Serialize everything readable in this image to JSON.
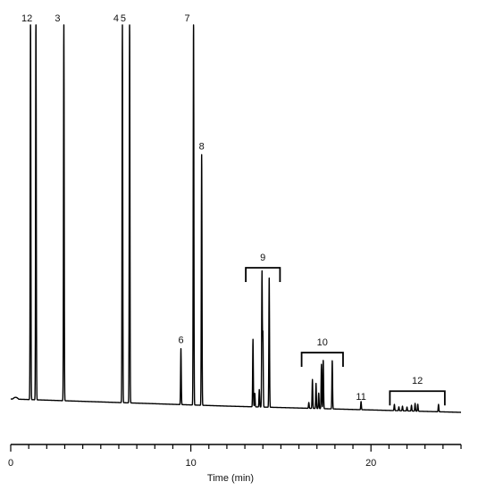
{
  "chart_data": {
    "type": "line",
    "title": "",
    "xlabel": "Time (min)",
    "ylabel": "",
    "xlim": [
      0,
      25
    ],
    "ylim": [
      0,
      100
    ],
    "x_ticks": [
      0,
      10,
      20
    ],
    "x_tick_labels": [
      "0",
      "10",
      "20"
    ],
    "minor_tick_step": 1,
    "grid": false,
    "line_color": "#000000",
    "peaks": [
      {
        "label": "1",
        "time": 1.1,
        "height": 100
      },
      {
        "label": "2",
        "time": 1.4,
        "height": 100
      },
      {
        "label": "3",
        "time": 2.95,
        "height": 100
      },
      {
        "label": "4",
        "time": 6.2,
        "height": 100
      },
      {
        "label": "5",
        "time": 6.6,
        "height": 100
      },
      {
        "label": "6",
        "time": 9.45,
        "height": 14.5
      },
      {
        "label": "7",
        "time": 10.15,
        "height": 100
      },
      {
        "label": "8",
        "time": 10.6,
        "height": 65
      }
    ],
    "minor_peaks": [
      {
        "time": 13.45,
        "height": 17.5
      },
      {
        "time": 13.55,
        "height": 3.5
      },
      {
        "time": 13.8,
        "height": 4.5
      },
      {
        "time": 13.95,
        "height": 35
      },
      {
        "time": 14.0,
        "height": 19
      },
      {
        "time": 14.35,
        "height": 33.5
      },
      {
        "time": 16.55,
        "height": 1.5
      },
      {
        "time": 16.75,
        "height": 7.5
      },
      {
        "time": 16.95,
        "height": 6.5
      },
      {
        "time": 17.1,
        "height": 4
      },
      {
        "time": 17.25,
        "height": 11.5
      },
      {
        "time": 17.35,
        "height": 12.5
      },
      {
        "time": 17.85,
        "height": 12.5
      },
      {
        "time": 19.45,
        "height": 2.1
      },
      {
        "time": 21.3,
        "height": 1.6
      },
      {
        "time": 21.55,
        "height": 1.0
      },
      {
        "time": 21.75,
        "height": 1.2
      },
      {
        "time": 22.0,
        "height": 1.0
      },
      {
        "time": 22.25,
        "height": 1.5
      },
      {
        "time": 22.45,
        "height": 2.0
      },
      {
        "time": 22.6,
        "height": 1.8
      },
      {
        "time": 23.75,
        "height": 1.9
      }
    ],
    "groups": [
      {
        "label": "9",
        "start": 13.05,
        "end": 14.95,
        "level": 37.5
      },
      {
        "label": "10",
        "start": 16.15,
        "end": 18.45,
        "level": 15.5
      },
      {
        "label": "11",
        "start": 19.45,
        "end": 19.45,
        "level": null
      },
      {
        "label": "12",
        "start": 21.05,
        "end": 24.1,
        "level": 5.5
      }
    ]
  }
}
